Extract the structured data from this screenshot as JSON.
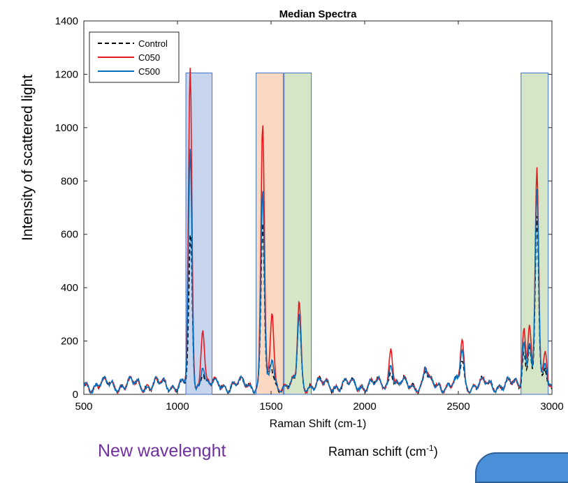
{
  "chart_data": {
    "type": "line",
    "title": "Median Spectra",
    "xlabel": "Raman Shift (cm-1)",
    "ylabel": "Intensity of scattered light",
    "xlim": [
      500,
      3000
    ],
    "ylim": [
      0,
      1400
    ],
    "xticks": [
      500,
      1000,
      1500,
      2000,
      2500,
      3000
    ],
    "yticks": [
      0,
      200,
      400,
      600,
      800,
      1000,
      1200,
      1400
    ],
    "legend_position": "top-left",
    "highlight_bands": [
      {
        "x0": 1045,
        "x1": 1185,
        "color": "#4472c4"
      },
      {
        "x0": 1420,
        "x1": 1565,
        "color": "#ed7d31"
      },
      {
        "x0": 1570,
        "x1": 1715,
        "color": "#70ad47"
      },
      {
        "x0": 2835,
        "x1": 2980,
        "color": "#70ad47"
      }
    ],
    "band_top": 1205,
    "series": [
      {
        "name": "Control",
        "color": "#000000",
        "style": "dashed",
        "peaks": [
          [
            1070,
            580
          ],
          [
            1135,
            90
          ],
          [
            1455,
            640
          ],
          [
            1500,
            100
          ],
          [
            1650,
            290
          ],
          [
            2140,
            100
          ],
          [
            2325,
            80
          ],
          [
            2520,
            120
          ],
          [
            2850,
            160
          ],
          [
            2880,
            190
          ],
          [
            2920,
            650
          ],
          [
            2965,
            100
          ]
        ]
      },
      {
        "name": "C050",
        "color": "#e8191e",
        "style": "solid",
        "peaks": [
          [
            1068,
            1200
          ],
          [
            1135,
            265
          ],
          [
            1455,
            1015
          ],
          [
            1505,
            300
          ],
          [
            1650,
            340
          ],
          [
            2140,
            190
          ],
          [
            2325,
            100
          ],
          [
            2520,
            200
          ],
          [
            2850,
            250
          ],
          [
            2880,
            270
          ],
          [
            2920,
            835
          ],
          [
            2965,
            165
          ]
        ]
      },
      {
        "name": "C500",
        "color": "#0070c0",
        "style": "solid",
        "peaks": [
          [
            1068,
            890
          ],
          [
            1135,
            120
          ],
          [
            1455,
            760
          ],
          [
            1505,
            125
          ],
          [
            1650,
            290
          ],
          [
            2140,
            130
          ],
          [
            2325,
            90
          ],
          [
            2520,
            160
          ],
          [
            2850,
            200
          ],
          [
            2880,
            210
          ],
          [
            2920,
            755
          ],
          [
            2965,
            120
          ]
        ]
      }
    ]
  },
  "annotations": {
    "side_ylabel": "Intensity of scattered light",
    "new_wavelength": "New wavelenght",
    "raman_schift": "Raman schift (cm",
    "raman_schift_sup": "-1",
    "raman_schift_close": ")"
  }
}
